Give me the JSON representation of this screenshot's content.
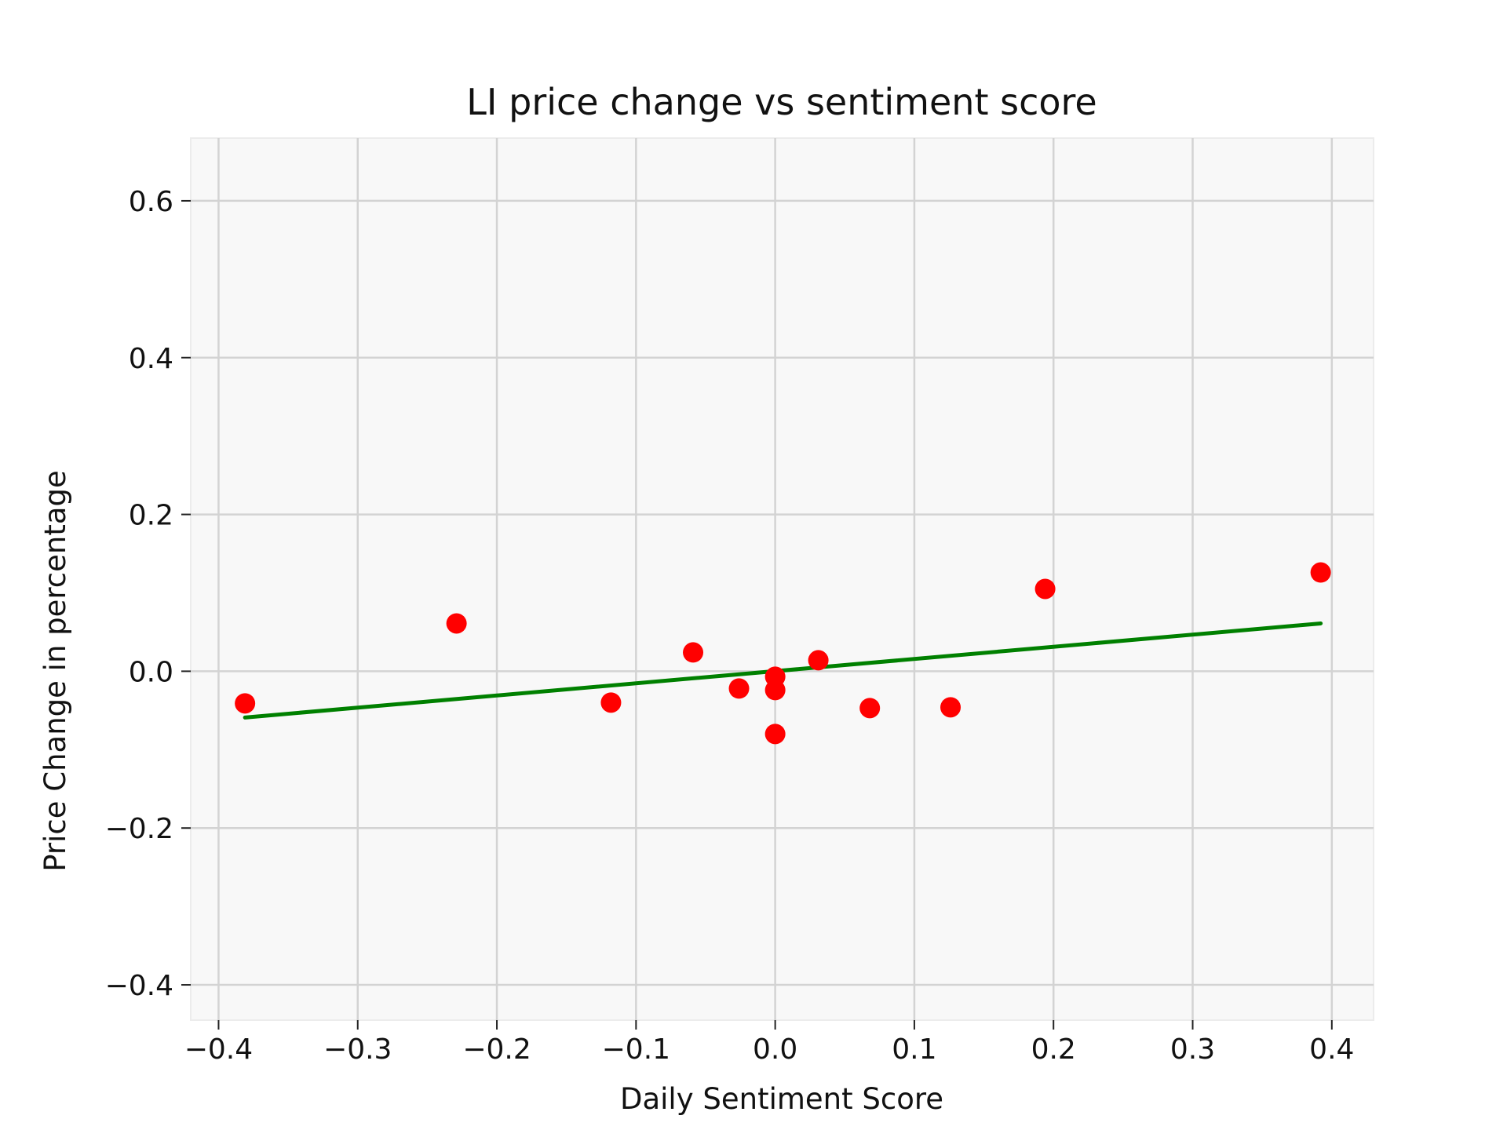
{
  "chart_data": {
    "type": "scatter",
    "title": "LI price change vs sentiment score",
    "xlabel": "Daily Sentiment Score",
    "ylabel": "Price Change in percentage",
    "xlim": [
      -0.42,
      0.43
    ],
    "ylim": [
      -0.445,
      0.68
    ],
    "x_ticks": [
      -0.4,
      -0.3,
      -0.2,
      -0.1,
      0.0,
      0.1,
      0.2,
      0.3,
      0.4
    ],
    "x_tick_labels": [
      "−0.4",
      "−0.3",
      "−0.2",
      "−0.1",
      "0.0",
      "0.1",
      "0.2",
      "0.3",
      "0.4"
    ],
    "y_ticks": [
      -0.4,
      -0.2,
      0.0,
      0.2,
      0.4,
      0.6
    ],
    "y_tick_labels": [
      "−0.4",
      "−0.2",
      "0.0",
      "0.2",
      "0.4",
      "0.6"
    ],
    "grid": true,
    "colors": {
      "points": "#ff0000",
      "trend_line": "#008000",
      "plot_background": "#f8f8f8",
      "grid": "#d3d3d3"
    },
    "series": [
      {
        "type": "scatter",
        "x": [
          -0.381,
          -0.229,
          -0.118,
          -0.059,
          -0.026,
          0.0,
          0.0,
          0.0,
          0.031,
          0.068,
          0.126,
          0.194,
          0.392
        ],
        "y": [
          -0.041,
          0.061,
          -0.04,
          0.024,
          -0.022,
          -0.007,
          -0.024,
          -0.08,
          0.014,
          -0.047,
          -0.046,
          0.105,
          0.126
        ]
      },
      {
        "type": "line",
        "x": [
          -0.381,
          0.392
        ],
        "y": [
          -0.059,
          0.061
        ]
      }
    ]
  }
}
